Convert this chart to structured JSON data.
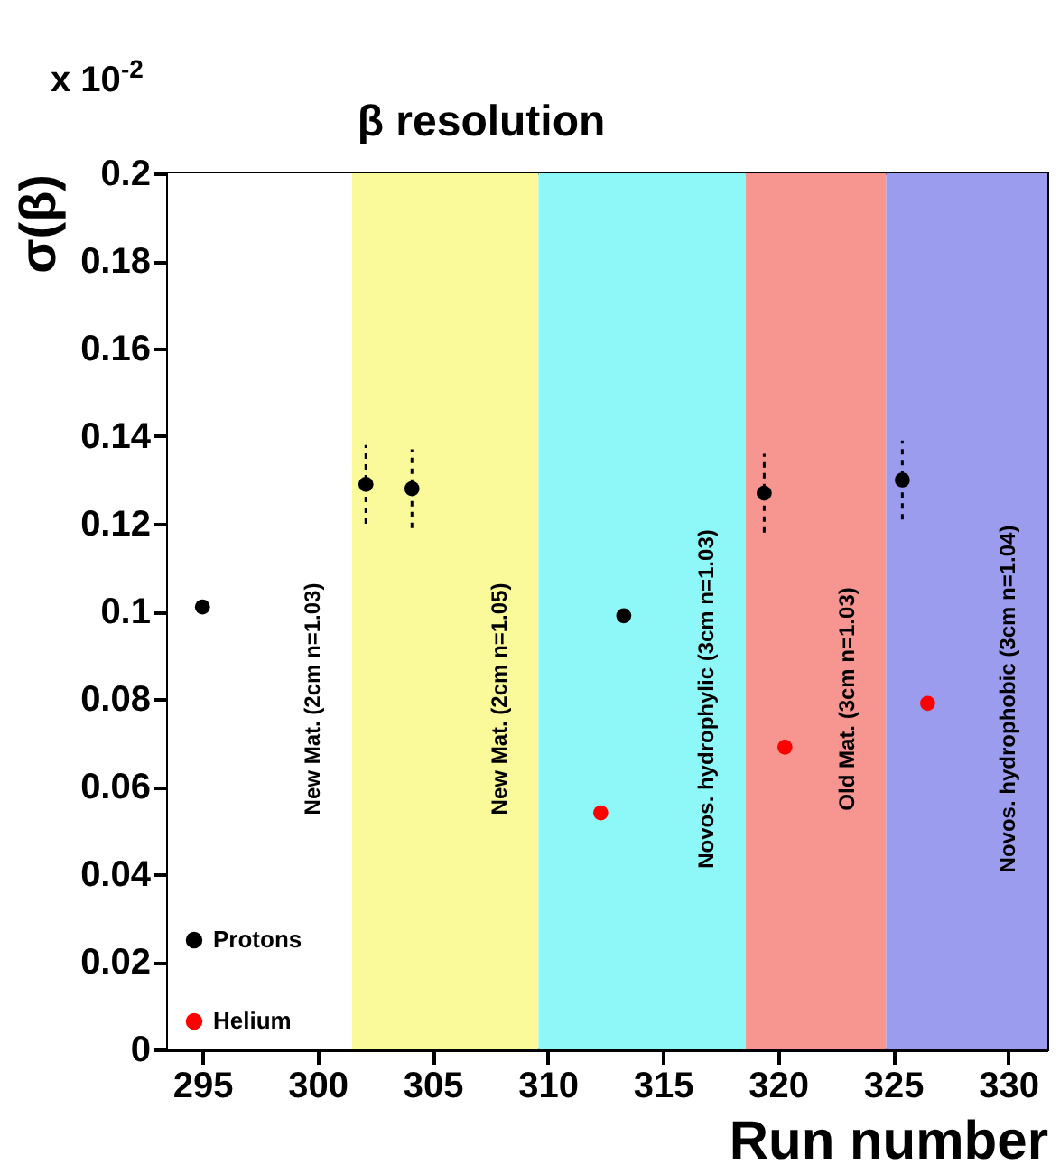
{
  "chart_data": {
    "type": "scatter",
    "title": "β resolution",
    "xlabel": "Run number",
    "ylabel": "σ(β)",
    "annotations": [
      "x 10$^{-2}$"
    ],
    "xlim": [
      293.5,
      331.7
    ],
    "xticks": [
      295,
      300,
      305,
      310,
      315,
      320,
      325,
      330
    ],
    "ylim": [
      0,
      0.2
    ],
    "yticks": [
      0,
      0.02,
      0.04,
      0.06,
      0.08,
      0.1,
      0.12,
      0.14,
      0.16,
      0.18,
      0.2
    ],
    "series": [
      {
        "name": "Protons",
        "color": "#000000",
        "x": [
          295,
          302.1,
          304.1,
          313.3,
          319.4,
          325.4
        ],
        "values": [
          0.101,
          0.129,
          0.128,
          0.099,
          0.127,
          0.13
        ],
        "errors": [
          null,
          0.009,
          0.009,
          null,
          0.009,
          0.009
        ]
      },
      {
        "name": "Helium",
        "color": "#ff0000",
        "x": [
          312.3,
          320.3,
          326.5
        ],
        "values": [
          0.054,
          0.069,
          0.079
        ]
      }
    ],
    "bands": [
      {
        "axis": "x",
        "from": 293.5,
        "to": 301.5,
        "label": "New Mat. (2cm n=1.03)",
        "color": "#ffffff"
      },
      {
        "axis": "x",
        "from": 301.5,
        "to": 309.6,
        "label": "New Mat. (2cm n=1.05)",
        "color": "#fafa9a"
      },
      {
        "axis": "x",
        "from": 309.6,
        "to": 318.6,
        "label": "Novos. hydrophylic (3cm n=1.03)",
        "color": "#8ef8f8"
      },
      {
        "axis": "x",
        "from": 318.6,
        "to": 324.7,
        "label": "Old Mat. (3cm n=1.03)",
        "color": "#f79590"
      },
      {
        "axis": "x",
        "from": 324.7,
        "to": 331.7,
        "label": "Novos. hydrophobic (3cm n=1.04)",
        "color": "#9c9cef"
      }
    ],
    "legend": "bottom left",
    "marker": "circle",
    "grid": false
  }
}
